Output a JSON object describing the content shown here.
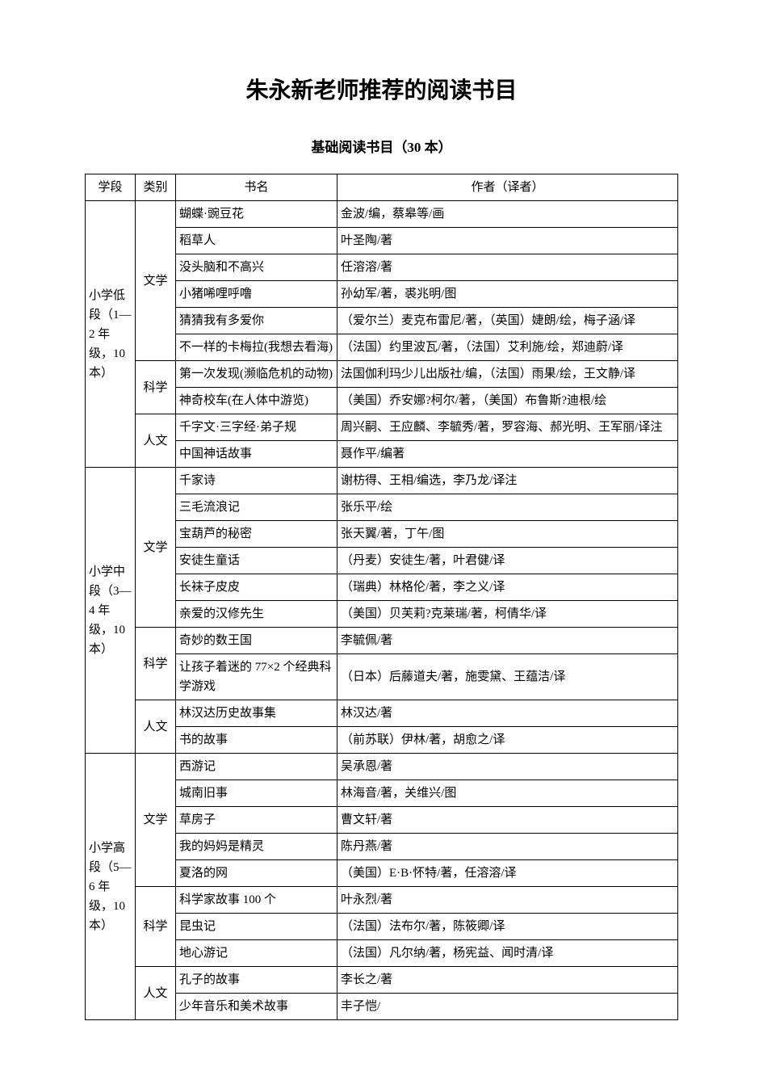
{
  "title": "朱永新老师推荐的阅读书目",
  "subtitle": "基础阅读书目（30 本）",
  "headers": {
    "stage": "学段",
    "category": "类别",
    "bookTitle": "书名",
    "author": "作者（译者）"
  },
  "stages": [
    {
      "name": "小学低段（1—2 年级，10本）",
      "categories": [
        {
          "name": "文学",
          "books": [
            {
              "title": "蝴蝶·豌豆花",
              "author": "金波/编，蔡皋等/画"
            },
            {
              "title": "稻草人",
              "author": "叶圣陶/著"
            },
            {
              "title": "没头脑和不高兴",
              "author": "任溶溶/著"
            },
            {
              "title": "小猪唏哩呼噜",
              "author": "孙幼军/著，裘兆明/图"
            },
            {
              "title": "猜猜我有多爱你",
              "author": "（爱尔兰）麦克布雷尼/著，（英国）婕朗/绘，梅子涵/译"
            },
            {
              "title": "不一样的卡梅拉(我想去看海)",
              "author": "（法国）约里波瓦/著，（法国）艾利施/绘，郑迪蔚/译"
            }
          ]
        },
        {
          "name": "科学",
          "books": [
            {
              "title": "第一次发现(濒临危机的动物)",
              "author": "法国伽利玛少儿出版社/编，（法国）雨果/绘，王文静/译"
            },
            {
              "title": "神奇校车(在人体中游览)",
              "author": "（美国）乔安娜?柯尔/著，（美国）布鲁斯?迪根/绘"
            }
          ]
        },
        {
          "name": "人文",
          "books": [
            {
              "title": "千字文·三字经·弟子规",
              "author": "周兴嗣、王应麟、李毓秀/著，罗容海、郝光明、王军丽/译注"
            },
            {
              "title": "中国神话故事",
              "author": "聂作平/编著"
            }
          ]
        }
      ]
    },
    {
      "name": "小学中段（3—4 年级，10本）",
      "categories": [
        {
          "name": "文学",
          "books": [
            {
              "title": "千家诗",
              "author": "谢枋得、王相/编选，李乃龙/译注"
            },
            {
              "title": "三毛流浪记",
              "author": "张乐平/绘"
            },
            {
              "title": "宝葫芦的秘密",
              "author": "张天翼/著，丁午/图"
            },
            {
              "title": "安徒生童话",
              "author": "（丹麦）安徒生/著，叶君健/译"
            },
            {
              "title": "长袜子皮皮",
              "author": "（瑞典）林格伦/著，李之义/译"
            },
            {
              "title": "亲爱的汉修先生",
              "author": "（美国）贝芙莉?克莱瑞/著，柯倩华/译"
            }
          ]
        },
        {
          "name": "科学",
          "books": [
            {
              "title": "奇妙的数王国",
              "author": "李毓佩/著"
            },
            {
              "title": "让孩子着迷的 77×2 个经典科学游戏",
              "author": "（日本）后藤道夫/著，施雯黛、王蕴洁/译"
            }
          ]
        },
        {
          "name": "人文",
          "books": [
            {
              "title": "林汉达历史故事集",
              "author": "林汉达/著"
            },
            {
              "title": "书的故事",
              "author": "（前苏联）伊林/著，胡愈之/译"
            }
          ]
        }
      ]
    },
    {
      "name": "小学高段（5—6 年级，10本）",
      "categories": [
        {
          "name": "文学",
          "books": [
            {
              "title": "西游记",
              "author": "吴承恩/著"
            },
            {
              "title": "城南旧事",
              "author": "林海音/著，关维兴/图"
            },
            {
              "title": "草房子",
              "author": "曹文轩/著"
            },
            {
              "title": "我的妈妈是精灵",
              "author": "陈丹燕/著"
            },
            {
              "title": "夏洛的网",
              "author": "（美国）E·B·怀特/著，任溶溶/译"
            }
          ]
        },
        {
          "name": "科学",
          "books": [
            {
              "title": "科学家故事 100 个",
              "author": "叶永烈/著"
            },
            {
              "title": "昆虫记",
              "author": "（法国）法布尔/著，陈筱卿/译"
            },
            {
              "title": "地心游记",
              "author": "（法国）凡尔纳/著，杨宪益、闻时清/译"
            }
          ]
        },
        {
          "name": "人文",
          "books": [
            {
              "title": "孔子的故事",
              "author": "李长之/著"
            },
            {
              "title": "少年音乐和美术故事",
              "author": "丰子恺/"
            }
          ]
        }
      ]
    }
  ]
}
